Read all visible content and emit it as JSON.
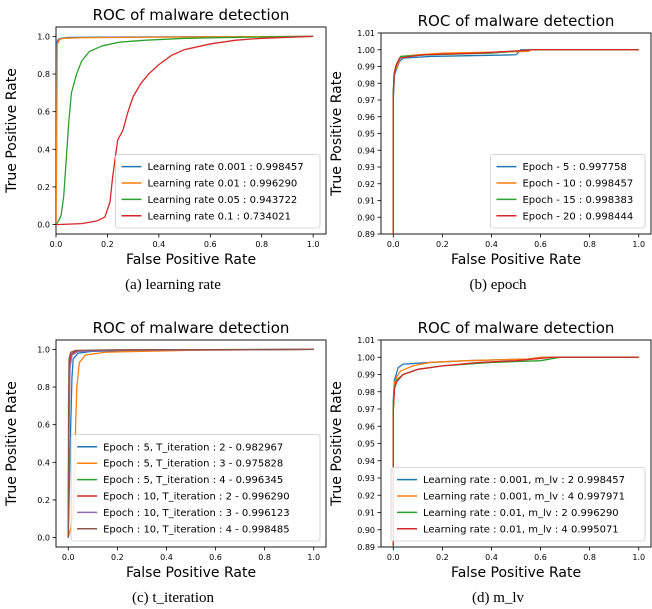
{
  "colors": {
    "blue": "#1f77b4",
    "orange": "#ff7f0e",
    "green": "#2ca02c",
    "red": "#d62728",
    "purple": "#9467bd",
    "brown": "#8c564b"
  },
  "chart_data": [
    {
      "type": "line",
      "title": "ROC of malware detection",
      "xlabel": "False Positive Rate",
      "ylabel": "True Positive Rate",
      "caption": "(a) learning rate",
      "xlim": [
        0,
        1.05
      ],
      "ylim": [
        -0.05,
        1.05
      ],
      "xticks": [
        0.0,
        0.2,
        0.4,
        0.6,
        0.8,
        1.0
      ],
      "yticks": [
        0.0,
        0.2,
        0.4,
        0.6,
        0.8,
        1.0
      ],
      "tick_decimals": 1,
      "legend_position": "lower-right",
      "series": [
        {
          "name": "Learning rate 0.001 : 0.998457",
          "color": "blue",
          "points": [
            [
              0,
              0
            ],
            [
              0.001,
              0.5
            ],
            [
              0.003,
              0.97
            ],
            [
              0.01,
              0.985
            ],
            [
              0.02,
              0.99
            ],
            [
              0.05,
              0.995
            ],
            [
              0.2,
              0.996
            ],
            [
              0.5,
              0.998
            ],
            [
              0.8,
              0.999
            ],
            [
              1.0,
              1.0
            ]
          ]
        },
        {
          "name": "Learning rate 0.01 : 0.996290",
          "color": "orange",
          "points": [
            [
              0,
              0
            ],
            [
              0.002,
              0.3
            ],
            [
              0.005,
              0.96
            ],
            [
              0.015,
              0.985
            ],
            [
              0.03,
              0.99
            ],
            [
              0.1,
              0.993
            ],
            [
              0.4,
              0.996
            ],
            [
              0.8,
              0.999
            ],
            [
              1.0,
              1.0
            ]
          ]
        },
        {
          "name": "Learning rate 0.05 : 0.943722",
          "color": "green",
          "points": [
            [
              0,
              0
            ],
            [
              0.01,
              0.02
            ],
            [
              0.02,
              0.05
            ],
            [
              0.03,
              0.15
            ],
            [
              0.04,
              0.35
            ],
            [
              0.05,
              0.55
            ],
            [
              0.06,
              0.7
            ],
            [
              0.08,
              0.8
            ],
            [
              0.1,
              0.87
            ],
            [
              0.13,
              0.92
            ],
            [
              0.18,
              0.95
            ],
            [
              0.25,
              0.97
            ],
            [
              0.35,
              0.98
            ],
            [
              0.5,
              0.99
            ],
            [
              0.7,
              0.995
            ],
            [
              1.0,
              1.0
            ]
          ]
        },
        {
          "name": "Learning rate 0.1 : 0.734021",
          "color": "red",
          "points": [
            [
              0,
              0
            ],
            [
              0.1,
              0.005
            ],
            [
              0.16,
              0.02
            ],
            [
              0.19,
              0.04
            ],
            [
              0.21,
              0.12
            ],
            [
              0.22,
              0.25
            ],
            [
              0.23,
              0.35
            ],
            [
              0.24,
              0.45
            ],
            [
              0.26,
              0.5
            ],
            [
              0.28,
              0.6
            ],
            [
              0.3,
              0.68
            ],
            [
              0.33,
              0.75
            ],
            [
              0.36,
              0.8
            ],
            [
              0.4,
              0.85
            ],
            [
              0.45,
              0.9
            ],
            [
              0.5,
              0.93
            ],
            [
              0.6,
              0.96
            ],
            [
              0.7,
              0.98
            ],
            [
              0.8,
              0.99
            ],
            [
              0.9,
              0.995
            ],
            [
              1.0,
              1.0
            ]
          ]
        }
      ]
    },
    {
      "type": "line",
      "title": "ROC of malware detection",
      "xlabel": "False Positive Rate",
      "ylabel": "True Positive Rate",
      "caption": "(b) epoch",
      "xlim": [
        -0.05,
        1.05
      ],
      "ylim": [
        0.89,
        1.01
      ],
      "xticks": [
        0.0,
        0.2,
        0.4,
        0.6,
        0.8,
        1.0
      ],
      "yticks": [
        0.89,
        0.9,
        0.91,
        0.92,
        0.93,
        0.94,
        0.95,
        0.96,
        0.97,
        0.98,
        0.99,
        1.0,
        1.01
      ],
      "tick_decimals": 2,
      "legend_position": "lower-right",
      "series": [
        {
          "name": "Epoch - 5 : 0.997758",
          "color": "blue",
          "points": [
            [
              0,
              0.89
            ],
            [
              0,
              0.97
            ],
            [
              0.005,
              0.985
            ],
            [
              0.012,
              0.988
            ],
            [
              0.025,
              0.993
            ],
            [
              0.04,
              0.995
            ],
            [
              0.15,
              0.996
            ],
            [
              0.5,
              0.997
            ],
            [
              0.52,
              1.0
            ],
            [
              1.0,
              1.0
            ]
          ]
        },
        {
          "name": "Epoch - 10 : 0.998457",
          "color": "orange",
          "points": [
            [
              0,
              0.89
            ],
            [
              0,
              0.975
            ],
            [
              0.005,
              0.987
            ],
            [
              0.015,
              0.99
            ],
            [
              0.03,
              0.996
            ],
            [
              0.1,
              0.997
            ],
            [
              0.2,
              0.998
            ],
            [
              0.55,
              0.999
            ],
            [
              0.56,
              1.0
            ],
            [
              1.0,
              1.0
            ]
          ]
        },
        {
          "name": "Epoch - 15 : 0.998383",
          "color": "green",
          "points": [
            [
              0,
              0.89
            ],
            [
              0,
              0.975
            ],
            [
              0.004,
              0.986
            ],
            [
              0.012,
              0.991
            ],
            [
              0.03,
              0.996
            ],
            [
              0.15,
              0.997
            ],
            [
              0.4,
              0.998
            ],
            [
              0.57,
              1.0
            ],
            [
              1.0,
              1.0
            ]
          ]
        },
        {
          "name": "Epoch - 20 : 0.998444",
          "color": "red",
          "points": [
            [
              0,
              0.89
            ],
            [
              0,
              0.972
            ],
            [
              0.003,
              0.985
            ],
            [
              0.01,
              0.99
            ],
            [
              0.025,
              0.995
            ],
            [
              0.12,
              0.997
            ],
            [
              0.35,
              0.998
            ],
            [
              0.58,
              1.0
            ],
            [
              1.0,
              1.0
            ]
          ]
        }
      ]
    },
    {
      "type": "line",
      "title": "ROC of malware detection",
      "xlabel": "False Positive Rate",
      "ylabel": "True Positive Rate",
      "caption": "(c) t_iteration",
      "xlim": [
        -0.05,
        1.05
      ],
      "ylim": [
        -0.05,
        1.05
      ],
      "xticks": [
        0.0,
        0.2,
        0.4,
        0.6,
        0.8,
        1.0
      ],
      "yticks": [
        0.0,
        0.2,
        0.4,
        0.6,
        0.8,
        1.0
      ],
      "tick_decimals": 1,
      "legend_position": "lower-right",
      "series": [
        {
          "name": "Epoch : 5, T_iteration : 2 - 0.982967",
          "color": "blue",
          "points": [
            [
              0,
              0
            ],
            [
              0.005,
              0.3
            ],
            [
              0.01,
              0.6
            ],
            [
              0.015,
              0.85
            ],
            [
              0.02,
              0.95
            ],
            [
              0.04,
              0.98
            ],
            [
              0.1,
              0.99
            ],
            [
              0.3,
              0.995
            ],
            [
              1.0,
              1.0
            ]
          ]
        },
        {
          "name": "Epoch : 5, T_iteration : 3 - 0.975828",
          "color": "orange",
          "points": [
            [
              0,
              0
            ],
            [
              0.01,
              0.05
            ],
            [
              0.02,
              0.12
            ],
            [
              0.025,
              0.3
            ],
            [
              0.03,
              0.6
            ],
            [
              0.035,
              0.8
            ],
            [
              0.045,
              0.93
            ],
            [
              0.07,
              0.97
            ],
            [
              0.15,
              0.985
            ],
            [
              0.3,
              0.99
            ],
            [
              0.5,
              0.995
            ],
            [
              1.0,
              1.0
            ]
          ]
        },
        {
          "name": "Epoch : 5, T_iteration : 4 - 0.996345",
          "color": "green",
          "points": [
            [
              0,
              0
            ],
            [
              0.002,
              0.5
            ],
            [
              0.005,
              0.9
            ],
            [
              0.01,
              0.97
            ],
            [
              0.03,
              0.99
            ],
            [
              0.1,
              0.995
            ],
            [
              0.4,
              0.998
            ],
            [
              1.0,
              1.0
            ]
          ]
        },
        {
          "name": "Epoch : 10, T_iteration : 2 - 0.996290",
          "color": "red",
          "points": [
            [
              0,
              0
            ],
            [
              0.002,
              0.6
            ],
            [
              0.005,
              0.92
            ],
            [
              0.012,
              0.975
            ],
            [
              0.03,
              0.99
            ],
            [
              0.15,
              0.996
            ],
            [
              0.5,
              0.998
            ],
            [
              1.0,
              1.0
            ]
          ]
        },
        {
          "name": "Epoch : 10, T_iteration : 3 - 0.996123",
          "color": "purple",
          "points": [
            [
              0,
              0
            ],
            [
              0.003,
              0.55
            ],
            [
              0.007,
              0.9
            ],
            [
              0.015,
              0.97
            ],
            [
              0.04,
              0.99
            ],
            [
              0.2,
              0.996
            ],
            [
              0.6,
              0.998
            ],
            [
              1.0,
              1.0
            ]
          ]
        },
        {
          "name": "Epoch : 10, T_iteration : 4 - 0.998485",
          "color": "brown",
          "points": [
            [
              0,
              0
            ],
            [
              0.001,
              0.7
            ],
            [
              0.003,
              0.95
            ],
            [
              0.01,
              0.985
            ],
            [
              0.03,
              0.995
            ],
            [
              0.2,
              0.998
            ],
            [
              1.0,
              1.0
            ]
          ]
        }
      ]
    },
    {
      "type": "line",
      "title": "ROC of malware detection",
      "xlabel": "False Positive Rate",
      "ylabel": "True Positive Rate",
      "caption": "(d) m_lv",
      "xlim": [
        -0.05,
        1.05
      ],
      "ylim": [
        0.89,
        1.01
      ],
      "xticks": [
        0.0,
        0.2,
        0.4,
        0.6,
        0.8,
        1.0
      ],
      "yticks": [
        0.89,
        0.9,
        0.91,
        0.92,
        0.93,
        0.94,
        0.95,
        0.96,
        0.97,
        0.98,
        0.99,
        1.0,
        1.01
      ],
      "tick_decimals": 2,
      "legend_position": "lower-right",
      "series": [
        {
          "name": "Learning rate : 0.001, m_lv : 2  0.998457",
          "color": "blue",
          "points": [
            [
              0,
              0.89
            ],
            [
              0,
              0.975
            ],
            [
              0.005,
              0.987
            ],
            [
              0.012,
              0.99
            ],
            [
              0.02,
              0.994
            ],
            [
              0.04,
              0.996
            ],
            [
              0.15,
              0.997
            ],
            [
              0.3,
              0.998
            ],
            [
              0.55,
              0.999
            ],
            [
              0.6,
              1.0
            ],
            [
              1.0,
              1.0
            ]
          ]
        },
        {
          "name": "Learning rate : 0.001, m_lv : 4  0.997971",
          "color": "orange",
          "points": [
            [
              0,
              0.89
            ],
            [
              0,
              0.972
            ],
            [
              0.005,
              0.985
            ],
            [
              0.015,
              0.989
            ],
            [
              0.03,
              0.992
            ],
            [
              0.08,
              0.995
            ],
            [
              0.15,
              0.997
            ],
            [
              0.3,
              0.998
            ],
            [
              0.55,
              0.999
            ],
            [
              0.6,
              1.0
            ],
            [
              1.0,
              1.0
            ]
          ]
        },
        {
          "name": "Learning rate : 0.01, m_lv : 2  0.996290",
          "color": "green",
          "points": [
            [
              0,
              0.89
            ],
            [
              0,
              0.97
            ],
            [
              0.005,
              0.983
            ],
            [
              0.015,
              0.987
            ],
            [
              0.04,
              0.99
            ],
            [
              0.1,
              0.993
            ],
            [
              0.2,
              0.995
            ],
            [
              0.4,
              0.997
            ],
            [
              0.6,
              0.998
            ],
            [
              0.68,
              1.0
            ],
            [
              1.0,
              1.0
            ]
          ]
        },
        {
          "name": "Learning rate : 0.01, m_lv : 4  0.995071",
          "color": "red",
          "points": [
            [
              0,
              0.89
            ],
            [
              0,
              0.968
            ],
            [
              0.005,
              0.982
            ],
            [
              0.015,
              0.986
            ],
            [
              0.04,
              0.99
            ],
            [
              0.1,
              0.993
            ],
            [
              0.2,
              0.995
            ],
            [
              0.35,
              0.997
            ],
            [
              0.5,
              0.998
            ],
            [
              0.65,
              1.0
            ],
            [
              1.0,
              1.0
            ]
          ]
        }
      ]
    }
  ]
}
